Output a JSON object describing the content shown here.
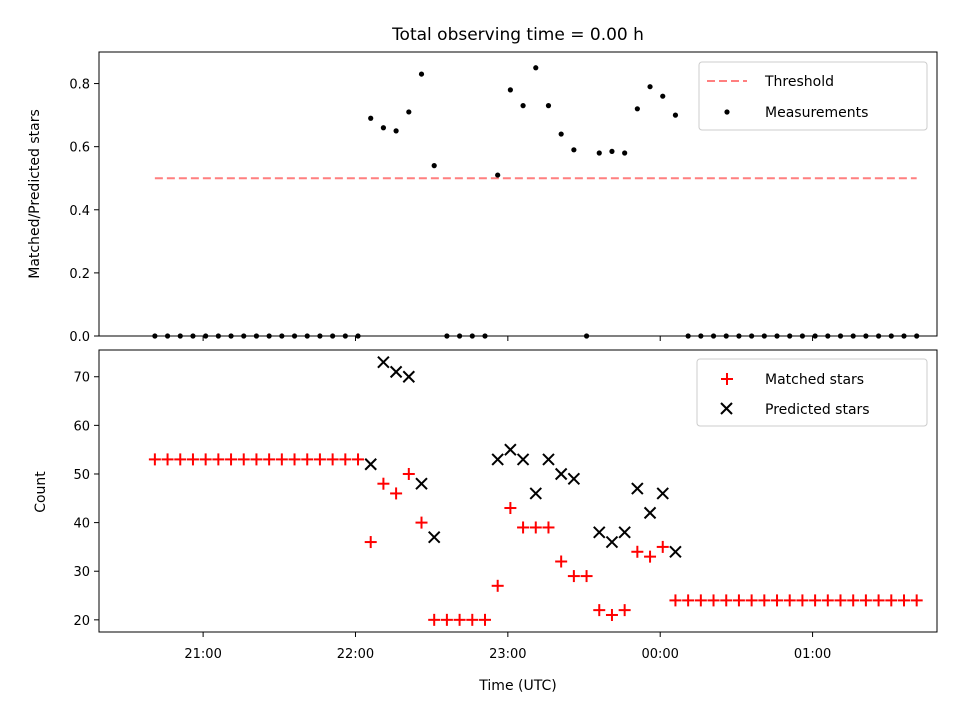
{
  "chart_data": [
    {
      "type": "scatter",
      "title": "Total observing time = 0.00 h",
      "xlabel": "",
      "ylabel": "Matched/Predicted stars",
      "ylim": [
        0,
        0.9
      ],
      "yticks": [
        "0.0",
        "0.2",
        "0.4",
        "0.6",
        "0.8"
      ],
      "xtick_labels_shown": false,
      "legend_position": "top-right",
      "threshold": {
        "name": "Threshold",
        "color": "#ff7f7f",
        "style": "dashed",
        "value": 0.5,
        "x_range": [
          "20:41",
          "25:41"
        ]
      },
      "measurements": {
        "name": "Measurements",
        "color": "#000000",
        "x": [
          "20:41",
          "20:46",
          "20:51",
          "20:56",
          "21:01",
          "21:06",
          "21:11",
          "21:16",
          "21:21",
          "21:26",
          "21:31",
          "21:36",
          "21:41",
          "21:46",
          "21:51",
          "21:56",
          "22:01",
          "22:06",
          "22:11",
          "22:16",
          "22:21",
          "22:26",
          "22:31",
          "22:36",
          "22:41",
          "22:46",
          "22:51",
          "22:56",
          "23:01",
          "23:06",
          "23:11",
          "23:16",
          "23:21",
          "23:26",
          "23:31",
          "23:36",
          "23:41",
          "23:46",
          "23:51",
          "23:56",
          "24:01",
          "24:06",
          "24:11",
          "24:16",
          "24:21",
          "24:26",
          "24:31",
          "24:36",
          "24:41",
          "24:46",
          "24:51",
          "24:56",
          "25:01",
          "25:06",
          "25:11",
          "25:16",
          "25:21",
          "25:26",
          "25:31",
          "25:36",
          "25:41"
        ],
        "y": [
          0,
          0,
          0,
          0,
          0,
          0,
          0,
          0,
          0,
          0,
          0,
          0,
          0,
          0,
          0,
          0,
          0,
          0.69,
          0.66,
          0.65,
          0.71,
          0.83,
          0.54,
          0,
          0,
          0,
          0,
          0.51,
          0.78,
          0.73,
          0.85,
          0.73,
          0.64,
          0.59,
          0,
          0.58,
          0.585,
          0.58,
          0.72,
          0.79,
          0.76,
          0.7,
          0,
          0,
          0,
          0,
          0,
          0,
          0,
          0,
          0,
          0,
          0,
          0,
          0,
          0,
          0,
          0,
          0,
          0,
          0
        ]
      }
    },
    {
      "type": "scatter",
      "title": "",
      "xlabel": "Time (UTC)",
      "ylabel": "Count",
      "ylim": [
        17.5,
        75.5
      ],
      "yticks": [
        "20",
        "30",
        "40",
        "50",
        "60",
        "70"
      ],
      "xlim": [
        "20:19",
        "25:49"
      ],
      "xticks": [
        "21:00",
        "22:00",
        "23:00",
        "00:00",
        "01:00"
      ],
      "legend_position": "top-right",
      "series": [
        {
          "name": "Matched stars",
          "marker": "+",
          "color": "#ff0000",
          "x": [
            "20:41",
            "20:46",
            "20:51",
            "20:56",
            "21:01",
            "21:06",
            "21:11",
            "21:16",
            "21:21",
            "21:26",
            "21:31",
            "21:36",
            "21:41",
            "21:46",
            "21:51",
            "21:56",
            "22:01",
            "22:06",
            "22:11",
            "22:16",
            "22:21",
            "22:26",
            "22:31",
            "22:36",
            "22:41",
            "22:46",
            "22:51",
            "22:56",
            "23:01",
            "23:06",
            "23:11",
            "23:16",
            "23:21",
            "23:26",
            "23:31",
            "23:36",
            "23:41",
            "23:46",
            "23:51",
            "23:56",
            "24:01",
            "24:06",
            "24:11",
            "24:16",
            "24:21",
            "24:26",
            "24:31",
            "24:36",
            "24:41",
            "24:46",
            "24:51",
            "24:56",
            "25:01",
            "25:06",
            "25:11",
            "25:16",
            "25:21",
            "25:26",
            "25:31",
            "25:36",
            "25:41"
          ],
          "y": [
            53,
            53,
            53,
            53,
            53,
            53,
            53,
            53,
            53,
            53,
            53,
            53,
            53,
            53,
            53,
            53,
            53,
            36,
            48,
            46,
            50,
            40,
            20,
            20,
            20,
            20,
            20,
            27,
            43,
            39,
            39,
            39,
            32,
            29,
            29,
            22,
            21,
            22,
            34,
            33,
            35,
            24,
            24,
            24,
            24,
            24,
            24,
            24,
            24,
            24,
            24,
            24,
            24,
            24,
            24,
            24,
            24,
            24,
            24,
            24,
            24
          ]
        },
        {
          "name": "Predicted stars",
          "marker": "x",
          "color": "#000000",
          "x": [
            "22:06",
            "22:11",
            "22:16",
            "22:21",
            "22:26",
            "22:31",
            "22:56",
            "23:01",
            "23:06",
            "23:11",
            "23:16",
            "23:21",
            "23:26",
            "23:36",
            "23:41",
            "23:46",
            "23:51",
            "23:56",
            "24:01",
            "24:06"
          ],
          "y": [
            52,
            73,
            71,
            70,
            48,
            37,
            53,
            55,
            53,
            46,
            53,
            50,
            49,
            38,
            36,
            38,
            47,
            42,
            46,
            34
          ]
        }
      ]
    }
  ]
}
